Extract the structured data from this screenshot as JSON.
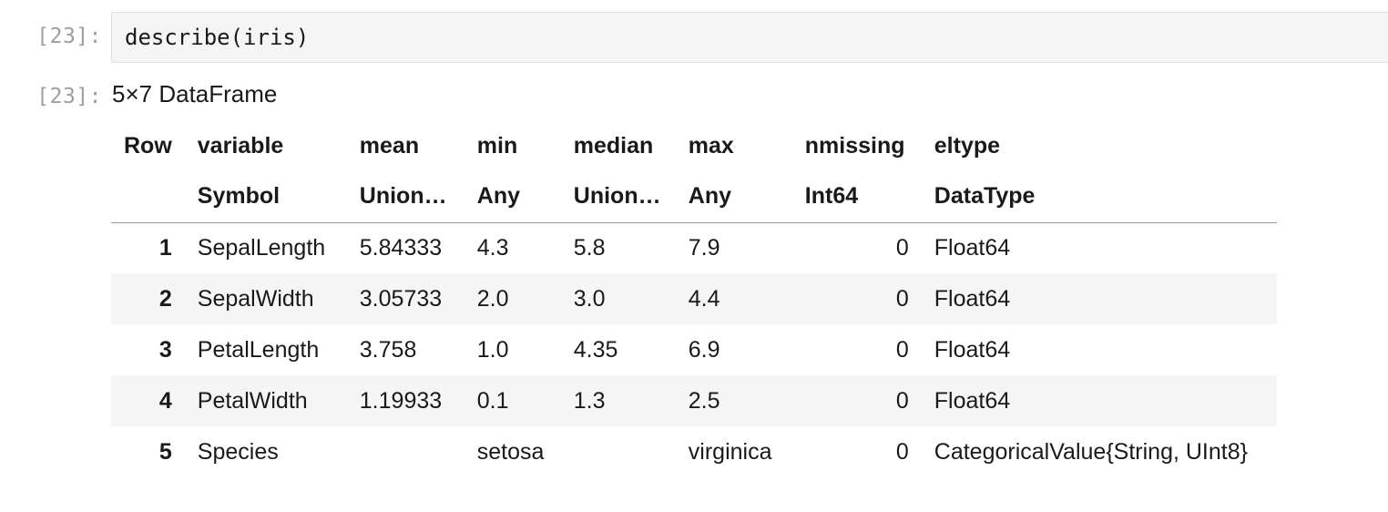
{
  "input": {
    "prompt": "[23]:",
    "code": "describe(iris)"
  },
  "output": {
    "prompt": "[23]:",
    "caption": "5×7 DataFrame",
    "columns": [
      {
        "name": "Row",
        "type": ""
      },
      {
        "name": "variable",
        "type": "Symbol"
      },
      {
        "name": "mean",
        "type": "Union…"
      },
      {
        "name": "min",
        "type": "Any"
      },
      {
        "name": "median",
        "type": "Union…"
      },
      {
        "name": "max",
        "type": "Any"
      },
      {
        "name": "nmissing",
        "type": "Int64"
      },
      {
        "name": "eltype",
        "type": "DataType"
      }
    ],
    "rows": [
      [
        "1",
        "SepalLength",
        "5.84333",
        "4.3",
        "5.8",
        "7.9",
        "0",
        "Float64"
      ],
      [
        "2",
        "SepalWidth",
        "3.05733",
        "2.0",
        "3.0",
        "4.4",
        "0",
        "Float64"
      ],
      [
        "3",
        "PetalLength",
        "3.758",
        "1.0",
        "4.35",
        "6.9",
        "0",
        "Float64"
      ],
      [
        "4",
        "PetalWidth",
        "1.19933",
        "0.1",
        "1.3",
        "2.5",
        "0",
        "Float64"
      ],
      [
        "5",
        "Species",
        "",
        "setosa",
        "",
        "virginica",
        "0",
        "CategoricalValue{String, UInt8}"
      ]
    ]
  },
  "colors": {
    "prompt": "#9e9e9e",
    "input_bg": "#f5f5f5",
    "stripe_bg": "#f5f5f5"
  }
}
